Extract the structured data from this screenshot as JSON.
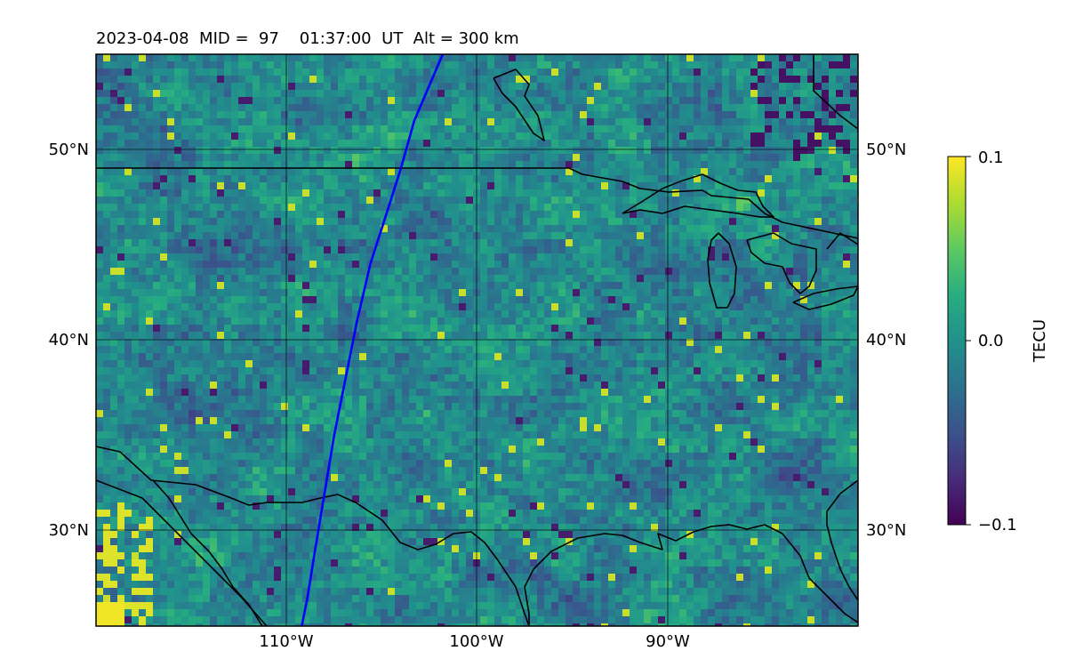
{
  "chart_data": {
    "type": "heatmap",
    "title": "2023-04-08  MID =  97    01:37:00  UT  Alt = 300 km",
    "xlabel": "",
    "ylabel": "",
    "xlim": [
      -120,
      -80
    ],
    "ylim": [
      25,
      55
    ],
    "x_ticks": [
      -110,
      -100,
      -90
    ],
    "x_tick_labels": [
      "110°W",
      "100°W",
      "90°W"
    ],
    "y_ticks": [
      30,
      40,
      50
    ],
    "y_tick_labels": [
      "30°N",
      "40°N",
      "50°N"
    ],
    "grid": true,
    "colormap": "viridis",
    "colorbar": {
      "label": "TECU",
      "range": [
        -0.1,
        0.1
      ],
      "ticks": [
        0.1,
        0.0,
        -0.1
      ],
      "tick_labels": [
        "0.1",
        "0.0",
        "−0.1"
      ]
    },
    "path": {
      "color": "#0000ff",
      "points": [
        [
          -101.8,
          55.0
        ],
        [
          -103.3,
          51.5
        ],
        [
          -104.0,
          49.0
        ],
        [
          -104.8,
          46.5
        ],
        [
          -105.6,
          44.0
        ],
        [
          -106.3,
          41.0
        ],
        [
          -106.9,
          38.0
        ],
        [
          -107.5,
          35.0
        ],
        [
          -108.0,
          32.0
        ],
        [
          -108.5,
          29.0
        ],
        [
          -108.9,
          26.5
        ],
        [
          -109.2,
          25.0
        ]
      ]
    },
    "colors": {
      "frame": "#000000",
      "grid": "#000000"
    }
  }
}
